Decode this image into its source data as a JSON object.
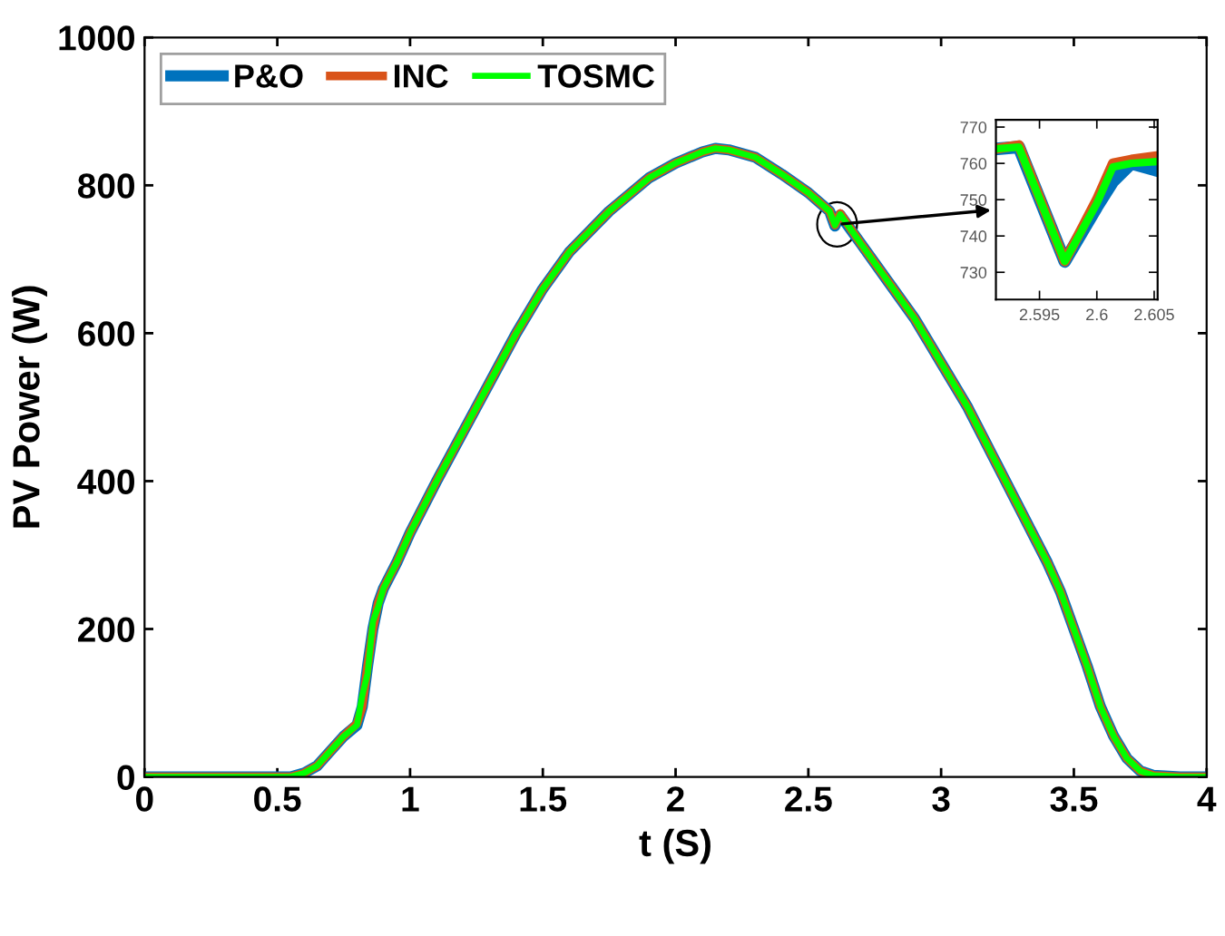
{
  "chart_data": [
    {
      "type": "line",
      "xlabel": "t (S)",
      "ylabel": "PV Power (W)",
      "xlim": [
        0,
        4
      ],
      "xticks": [
        0,
        0.5,
        1,
        1.5,
        2,
        2.5,
        3,
        3.5,
        4
      ],
      "ylim": [
        0,
        1000
      ],
      "yticks": [
        0,
        200,
        400,
        600,
        800,
        1000
      ],
      "grid": false,
      "legend": "top left",
      "line_style": "solid",
      "marker": "none",
      "x": [
        0,
        0.3,
        0.55,
        0.6,
        0.65,
        0.7,
        0.75,
        0.8,
        0.82,
        0.84,
        0.86,
        0.88,
        0.9,
        0.95,
        1.0,
        1.1,
        1.25,
        1.4,
        1.5,
        1.6,
        1.75,
        1.9,
        2.0,
        2.1,
        2.15,
        2.2,
        2.3,
        2.4,
        2.5,
        2.58,
        2.6,
        2.62,
        2.7,
        2.8,
        2.9,
        3.0,
        3.1,
        3.2,
        3.3,
        3.4,
        3.45,
        3.5,
        3.55,
        3.6,
        3.65,
        3.7,
        3.75,
        3.8,
        3.9,
        4.0
      ],
      "series": [
        {
          "name": "P&O",
          "color": "#0072bd",
          "values": [
            0,
            0,
            0,
            5,
            15,
            35,
            55,
            70,
            95,
            150,
            200,
            235,
            255,
            290,
            330,
            400,
            500,
            600,
            660,
            710,
            765,
            810,
            830,
            845,
            850,
            848,
            838,
            815,
            790,
            765,
            745,
            760,
            720,
            670,
            620,
            560,
            500,
            430,
            360,
            290,
            250,
            200,
            150,
            95,
            55,
            25,
            8,
            2,
            0,
            0
          ]
        },
        {
          "name": "INC",
          "color": "#d95319",
          "values": [
            0,
            0,
            0,
            5,
            15,
            35,
            55,
            72,
            95,
            150,
            200,
            235,
            255,
            290,
            330,
            400,
            500,
            600,
            660,
            710,
            765,
            810,
            830,
            845,
            850,
            848,
            838,
            815,
            790,
            765,
            746,
            762,
            720,
            670,
            620,
            560,
            500,
            430,
            360,
            290,
            250,
            200,
            150,
            95,
            55,
            25,
            8,
            2,
            0,
            0
          ]
        },
        {
          "name": "TOSMC",
          "color": "#00ff00",
          "values": [
            0,
            0,
            0,
            5,
            15,
            35,
            55,
            70,
            110,
            140,
            210,
            230,
            255,
            290,
            330,
            400,
            500,
            600,
            660,
            710,
            765,
            810,
            830,
            845,
            850,
            848,
            838,
            815,
            790,
            765,
            746,
            761,
            720,
            670,
            620,
            560,
            500,
            430,
            360,
            290,
            250,
            200,
            150,
            95,
            55,
            25,
            8,
            2,
            0,
            0
          ]
        }
      ]
    },
    {
      "type": "line",
      "xlim": [
        2.5912,
        2.6053
      ],
      "xticks": [
        2.595,
        2.6,
        2.605
      ],
      "ylim": [
        722.5,
        772
      ],
      "yticks": [
        730,
        740,
        750,
        760,
        770
      ],
      "grid": false,
      "legend": false,
      "line_style": "solid",
      "marker": "none",
      "x": [
        2.5912,
        2.5932,
        2.5972,
        2.6,
        2.6014,
        2.603,
        2.6053
      ],
      "series": [
        {
          "color": "#0072bd",
          "values": [
            764,
            764.5,
            733,
            748,
            755,
            760,
            758
          ]
        },
        {
          "color": "#d95319",
          "values": [
            764,
            765,
            733,
            750,
            760,
            761,
            762
          ]
        },
        {
          "color": "#00ff00",
          "values": [
            764,
            764.5,
            733,
            749,
            759,
            760,
            760.5
          ]
        }
      ]
    }
  ]
}
